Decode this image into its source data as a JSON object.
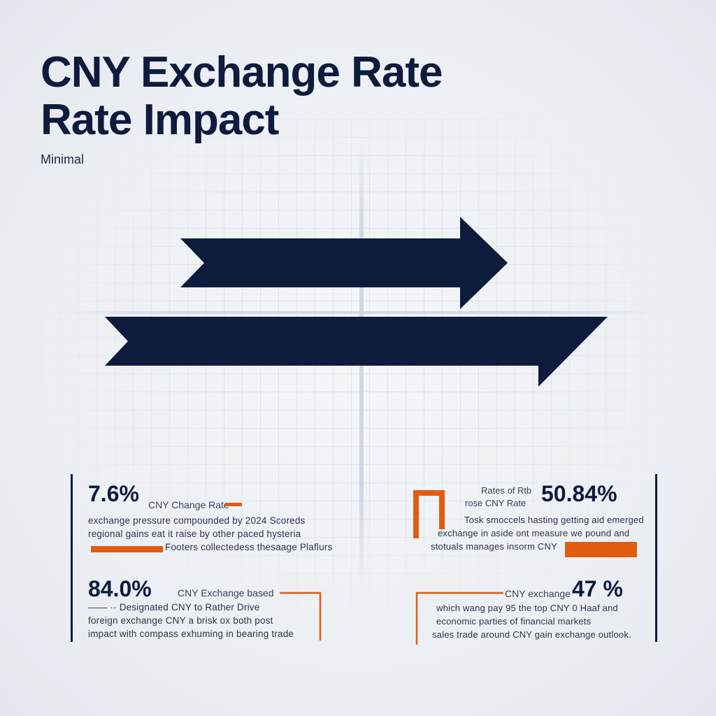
{
  "header": {
    "title_line1": "CNY Exchange Rate",
    "title_line2": "Rate Impact",
    "subtitle": "Minimal"
  },
  "colors": {
    "navy": "#0d1b3d",
    "orange": "#e05c10"
  },
  "stats": [
    {
      "value": "7.6%",
      "label": "CNY Change Rate",
      "lines": [
        "exchange pressure compounded by 2024 Scoreds",
        "regional gains eat it raise by other paced hysteria",
        "Footers collectedess thesaage Plaflurs"
      ]
    },
    {
      "value": "50.84%",
      "label_line1": "Rates of Rtb",
      "label_line2": "rose CNY Rate",
      "lines": [
        "Tosk smoccels hasting getting aid emerged",
        "exchange in aside ont measure we pound and",
        "stotuals manages insorm CNY"
      ]
    },
    {
      "value": "84.0%",
      "label": "CNY Exchange based",
      "lines": [
        "—— ·· Designated CNY to Rather Drive",
        "foreign exchange CNY a brisk ox both post",
        "impact with compass exhuming in bearing trade"
      ]
    },
    {
      "value": "47 %",
      "label": "CNY exchange",
      "lines": [
        "which wang pay 95 the top CNY 0 Haaf and",
        "economic parties of financial markets",
        "sales trade around CNY gain exchange outlook."
      ]
    }
  ]
}
